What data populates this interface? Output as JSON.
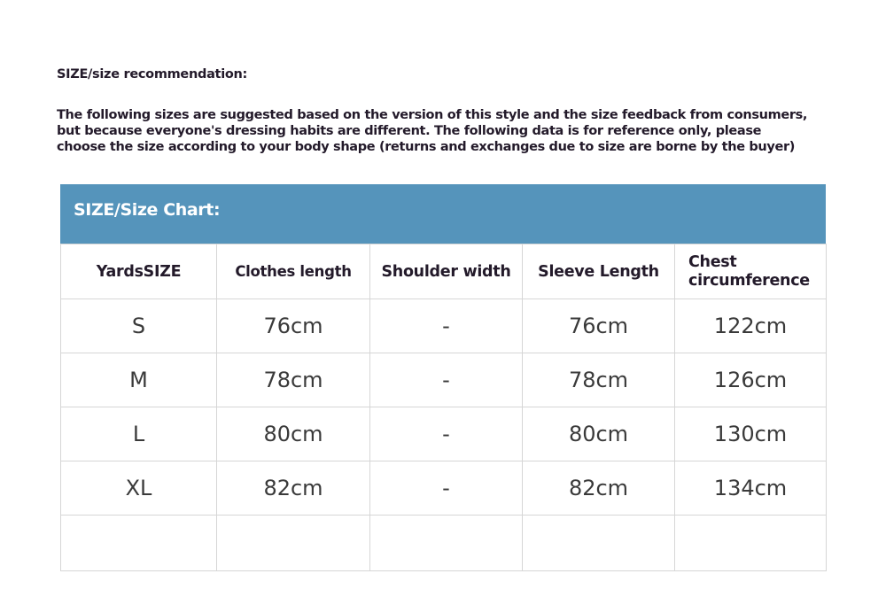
{
  "heading": "SIZE/size recommendation:",
  "intro": [
    "The following sizes are suggested based on the version of this style and the size feedback from consumers,",
    "but because everyone's dressing habits are different. The following data is for reference only, please",
    "choose the size according to your body shape (returns and exchanges due to size are borne by the buyer)"
  ],
  "chart_title": "SIZE/Size Chart:",
  "accent_color": "#5594bb",
  "columns": [
    "YardsSIZE",
    "Clothes length",
    "Shoulder width",
    "Sleeve Length",
    "Chest circumference"
  ],
  "rows": [
    [
      "S",
      "76cm",
      "-",
      "76cm",
      "122cm"
    ],
    [
      "M",
      "78cm",
      "-",
      "78cm",
      "126cm"
    ],
    [
      "L",
      "80cm",
      "-",
      "80cm",
      "130cm"
    ],
    [
      "XL",
      "82cm",
      "-",
      "82cm",
      "134cm"
    ],
    [
      "",
      "",
      "",
      "",
      ""
    ]
  ]
}
